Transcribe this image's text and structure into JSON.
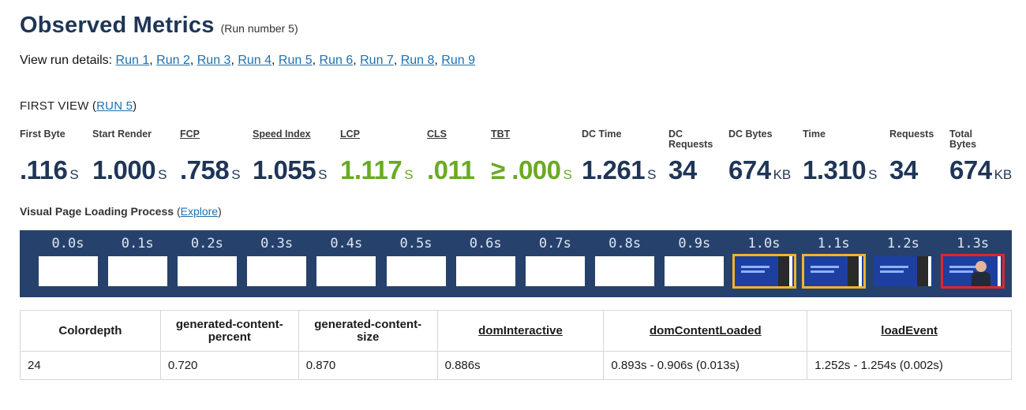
{
  "header": {
    "title": "Observed Metrics",
    "subtitle": "(Run number 5)"
  },
  "run_details": {
    "label": "View run details: ",
    "runs": [
      "Run 1",
      "Run 2",
      "Run 3",
      "Run 4",
      "Run 5",
      "Run 6",
      "Run 7",
      "Run 8",
      "Run 9"
    ]
  },
  "first_view": {
    "prefix": "FIRST VIEW (",
    "link": "RUN 5",
    "suffix": ")"
  },
  "metrics": [
    {
      "label": "First Byte",
      "value": ".116",
      "unit": "S",
      "underline": false,
      "green": false
    },
    {
      "label": "Start Render",
      "value": "1.000",
      "unit": "S",
      "underline": false,
      "green": false
    },
    {
      "label": "FCP",
      "value": ".758",
      "unit": "S",
      "underline": true,
      "green": false
    },
    {
      "label": "Speed Index",
      "value": "1.055",
      "unit": "S",
      "underline": true,
      "green": false
    },
    {
      "label": "LCP",
      "value": "1.117",
      "unit": "S",
      "underline": true,
      "green": true
    },
    {
      "label": "CLS",
      "value": ".011",
      "unit": "",
      "underline": true,
      "green": true
    },
    {
      "label": "TBT",
      "value": "≥ .000",
      "unit": "S",
      "underline": true,
      "green": true
    },
    {
      "label": "DC Time",
      "value": "1.261",
      "unit": "S",
      "underline": false,
      "green": false
    },
    {
      "label": "DC Requests",
      "value": "34",
      "unit": "",
      "underline": false,
      "green": false
    },
    {
      "label": "DC Bytes",
      "value": "674",
      "unit": "KB",
      "underline": false,
      "green": false
    },
    {
      "label": "Time",
      "value": "1.310",
      "unit": "S",
      "underline": false,
      "green": false
    },
    {
      "label": "Requests",
      "value": "34",
      "unit": "",
      "underline": false,
      "green": false
    },
    {
      "label": "Total Bytes",
      "value": "674",
      "unit": "KB",
      "underline": false,
      "green": false
    }
  ],
  "visual": {
    "label": "Visual Page Loading Process ",
    "open_paren": "(",
    "explore": "Explore",
    "close_paren": ")"
  },
  "filmstrip": [
    {
      "time": "0.0s",
      "state": "blank"
    },
    {
      "time": "0.1s",
      "state": "blank"
    },
    {
      "time": "0.2s",
      "state": "blank"
    },
    {
      "time": "0.3s",
      "state": "blank"
    },
    {
      "time": "0.4s",
      "state": "blank"
    },
    {
      "time": "0.5s",
      "state": "blank"
    },
    {
      "time": "0.6s",
      "state": "blank"
    },
    {
      "time": "0.7s",
      "state": "blank"
    },
    {
      "time": "0.8s",
      "state": "blank"
    },
    {
      "time": "0.9s",
      "state": "blank"
    },
    {
      "time": "1.0s",
      "state": "page-yellow"
    },
    {
      "time": "1.1s",
      "state": "page-yellow"
    },
    {
      "time": "1.2s",
      "state": "page"
    },
    {
      "time": "1.3s",
      "state": "person-red"
    }
  ],
  "table": {
    "headers": [
      {
        "label": "Colordepth",
        "underline": false
      },
      {
        "label": "generated-content-percent",
        "underline": false
      },
      {
        "label": "generated-content-size",
        "underline": false
      },
      {
        "label": "domInteractive",
        "underline": true
      },
      {
        "label": "domContentLoaded",
        "underline": true
      },
      {
        "label": "loadEvent",
        "underline": true
      }
    ],
    "row": [
      "24",
      "0.720",
      "0.870",
      "0.886s",
      "0.893s - 0.906s (0.013s)",
      "1.252s - 1.254s (0.002s)"
    ]
  },
  "colors": {
    "navy": "#1f3556",
    "green": "#6aaa22",
    "link": "#1f6fb0",
    "filmstrip_bg": "#26426c"
  }
}
